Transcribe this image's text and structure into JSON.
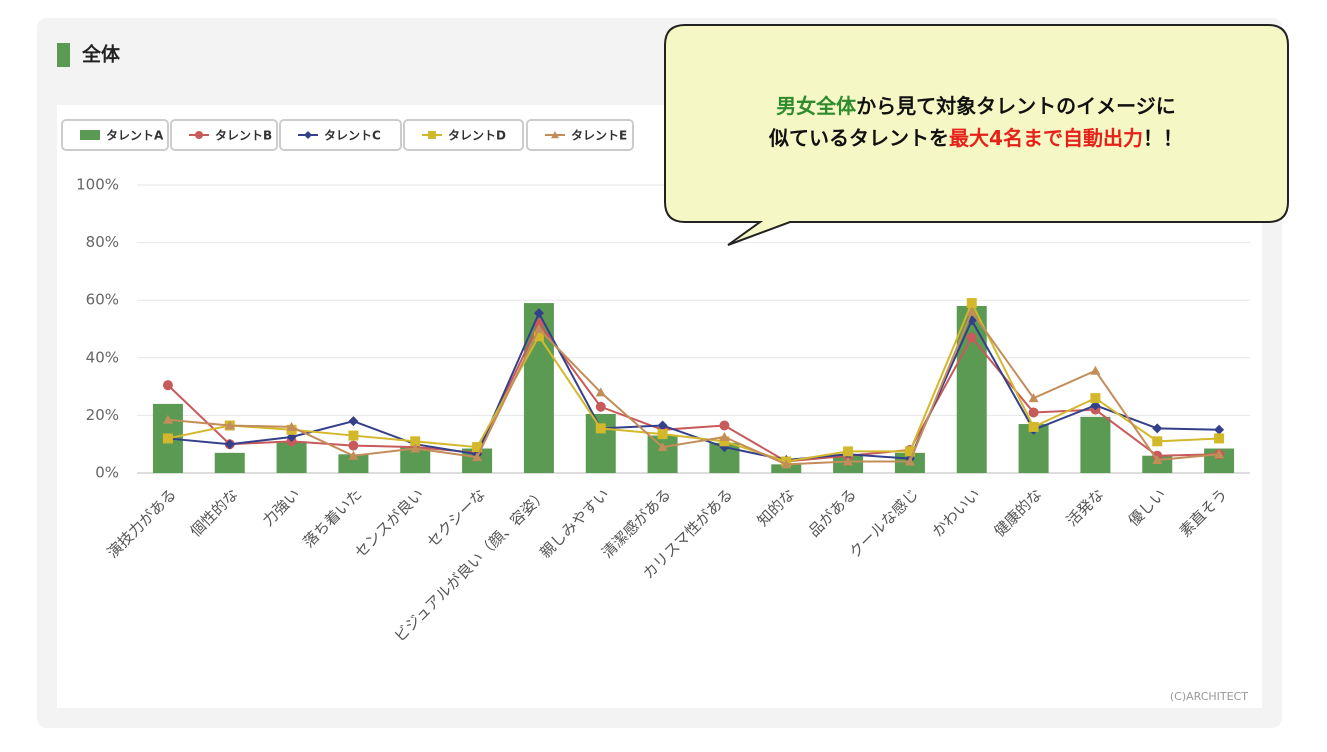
{
  "header": {
    "title": "全体"
  },
  "credit": "(C)ARCHITECT",
  "callout": {
    "lines": [
      [
        {
          "text": "男女全体",
          "color": "#2e8b2e"
        },
        {
          "text": "から見て対象タレントのイメージに",
          "color": "#111111"
        }
      ],
      [
        {
          "text": "似ているタレントを",
          "color": "#111111"
        },
        {
          "text": "最大4名まで自動出力",
          "color": "#e8201a"
        },
        {
          "text": "！！",
          "color": "#111111"
        }
      ]
    ]
  },
  "chart_data": {
    "type": "bar",
    "categories": [
      "演技力がある",
      "個性的な",
      "力強い",
      "落ち着いた",
      "センスが良い",
      "セクシーな",
      "ビジュアルが良い（顔、容姿）",
      "親しみやすい",
      "清潔感がある",
      "カリスマ性がある",
      "知的な",
      "品がある",
      "クールな感じ",
      "かわいい",
      "健康的な",
      "活発な",
      "優しい",
      "素直そう"
    ],
    "ylim": [
      0,
      100
    ],
    "yticks": [
      {
        "value": 0,
        "label": "0%"
      },
      {
        "value": 20,
        "label": "20%"
      },
      {
        "value": 40,
        "label": "40%"
      },
      {
        "value": 60,
        "label": "60%"
      },
      {
        "value": 80,
        "label": "80%"
      },
      {
        "value": 100,
        "label": "100%"
      }
    ],
    "grid": true,
    "series": [
      {
        "name": "タレントA",
        "type": "bar",
        "marker": "square",
        "color": "#5a9a52",
        "values": [
          24,
          7,
          11,
          6.5,
          9,
          8.5,
          59,
          20.5,
          13,
          10.5,
          3,
          6,
          7,
          58,
          17,
          19.5,
          6,
          8.5
        ]
      },
      {
        "name": "タレントB",
        "type": "line",
        "marker": "circle",
        "color": "#c75a5a",
        "values": [
          30.5,
          10,
          11,
          9.5,
          9,
          7,
          52,
          23,
          15,
          16.5,
          4,
          6,
          8,
          47,
          21,
          22,
          6,
          6.5
        ]
      },
      {
        "name": "タレントC",
        "type": "line",
        "marker": "diamond",
        "color": "#34408a",
        "values": [
          12,
          10,
          12.5,
          18,
          10,
          6.5,
          55.5,
          15.5,
          16.5,
          9,
          4.5,
          6.5,
          5,
          53,
          15,
          23.5,
          15.5,
          15
        ]
      },
      {
        "name": "タレントD",
        "type": "line",
        "marker": "square",
        "color": "#d4b82c",
        "values": [
          12,
          16.5,
          15,
          13,
          11,
          9,
          47.5,
          15.5,
          13.5,
          11,
          4,
          7.5,
          7.5,
          59,
          16,
          26,
          11,
          12
        ]
      },
      {
        "name": "タレントE",
        "type": "line",
        "marker": "triangle",
        "color": "#c38d5a",
        "values": [
          18.5,
          16.5,
          16,
          6,
          8.5,
          5.5,
          50,
          28,
          9,
          12.5,
          3,
          4,
          4,
          56,
          26,
          35.5,
          4.5,
          6.5
        ]
      }
    ]
  }
}
